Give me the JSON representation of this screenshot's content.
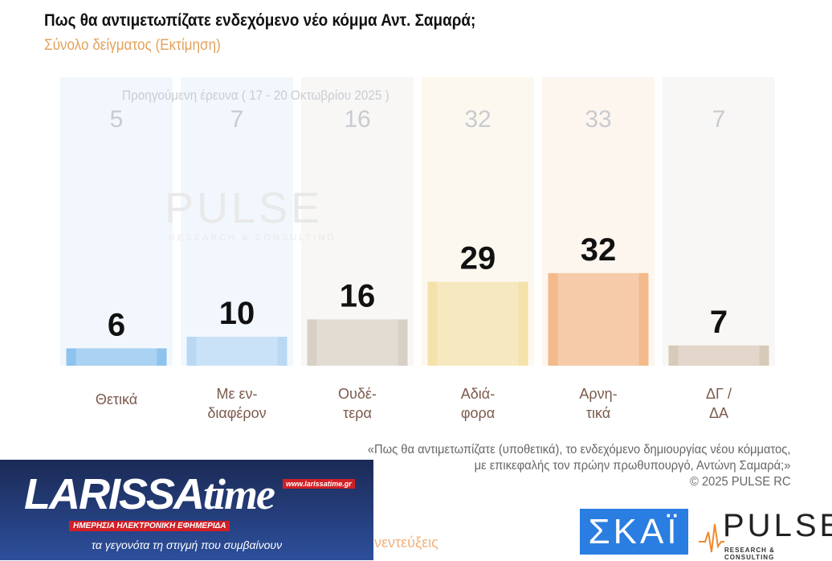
{
  "header": {
    "title": "Πως θα αντιμετωπίζατε ενδεχόμενο νέο κόμμα Αντ. Σαμαρά;",
    "subtitle": "Σύνολο δείγματος   (Εκτίμηση)"
  },
  "chart_data": {
    "type": "bar",
    "title": "Πως θα αντιμετωπίζατε ενδεχόμενο νέο κόμμα Αντ. Σαμαρά;",
    "subtitle": "Σύνολο δείγματος   (Εκτίμηση)",
    "categories": [
      [
        "Θετικά"
      ],
      [
        "Με εν-",
        "διαφέρον"
      ],
      [
        "Ουδέ-",
        "τερα"
      ],
      [
        "Αδιά-",
        "φορα"
      ],
      [
        "Αρνη-",
        "τικά"
      ],
      [
        "ΔΓ /",
        "ΔΑ"
      ]
    ],
    "values": [
      6,
      10,
      16,
      29,
      32,
      7
    ],
    "previous_label": "Προηγούμενη έρευνα ( 17 - 20 Οκτωβρίου 2025 )",
    "previous_values": [
      5,
      7,
      16,
      32,
      33,
      7
    ],
    "colors": [
      "#8ec3ee",
      "#b8d8f4",
      "#d8d0c5",
      "#f4e2aa",
      "#f3ba8c",
      "#d8cab9"
    ],
    "bg_colors": [
      "#f1f7fd",
      "#f1f7fd",
      "#f8f7f5",
      "#fdf8ef",
      "#fdf6ef",
      "#f8f7f5"
    ],
    "ylim": [
      0,
      100
    ],
    "grid": false
  },
  "watermark": {
    "brand": "PULSE",
    "sub": "RESEARCH & CONSULTING"
  },
  "note": {
    "lines": [
      "«Πως θα αντιμετωπίζατε (υποθετικά), το ενδεχόμενο δημιουργίας νέου κόμματος,",
      "με επικεφαλής τον πρώην πρωθυπουργό, Αντώνη Σαμαρά;»",
      "©  2025  PULSE RC"
    ]
  },
  "larissa": {
    "logo": "LARISSAtime",
    "url": "www.larissatime.gr",
    "tagline": "ΗΜΕΡΗΣΙΑ ΗΛΕΚΤΡΟΝΙΚΗ ΕΦΗΜΕΡΙΔΑ",
    "slogan": "τα γεγονότα τη στιγμή που συμβαίνουν"
  },
  "footer": {
    "interviews": "νεντεύξεις",
    "skai": "ΣΚΑΪ",
    "pulse": "PULSE",
    "pulse_sub": "RESEARCH & CONSULTING"
  }
}
